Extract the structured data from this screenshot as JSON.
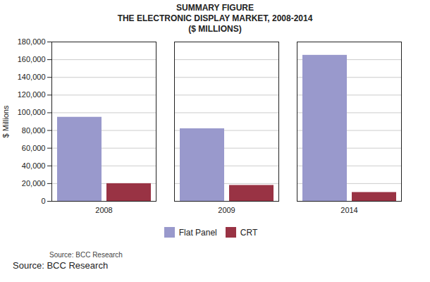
{
  "chart_data": {
    "type": "bar",
    "title": "SUMMARY FIGURE",
    "subtitle": [
      "THE ELECTRONIC DISPLAY MARKET, 2008-2014",
      "($ MILLIONS)"
    ],
    "categories": [
      "2008",
      "2009",
      "2014"
    ],
    "series": [
      {
        "name": "Flat Panel",
        "color": "#9999CC",
        "values": [
          95000,
          82000,
          165000
        ]
      },
      {
        "name": "CRT",
        "color": "#993344",
        "values": [
          20000,
          18000,
          10000
        ]
      }
    ],
    "ylabel": "$ Millions",
    "ylim": [
      0,
      180000
    ],
    "yticks": [
      0,
      {
        "value": 20000,
        "label": "20,000"
      },
      {
        "value": 40000,
        "label": "40,000"
      },
      {
        "value": 60000,
        "label": "60,000"
      },
      {
        "value": 80000,
        "label": "80,000"
      },
      {
        "value": 100000,
        "label": "100,000"
      },
      {
        "value": 120000,
        "label": "120,000"
      },
      {
        "value": 140000,
        "label": "140,000"
      },
      {
        "value": 160000,
        "label": "160,000"
      },
      {
        "value": 180000,
        "label": "180,000"
      }
    ],
    "grid": true,
    "legend": "bottom",
    "annotations": [
      "Source: BCC Research",
      "Source: BCC Research"
    ]
  }
}
